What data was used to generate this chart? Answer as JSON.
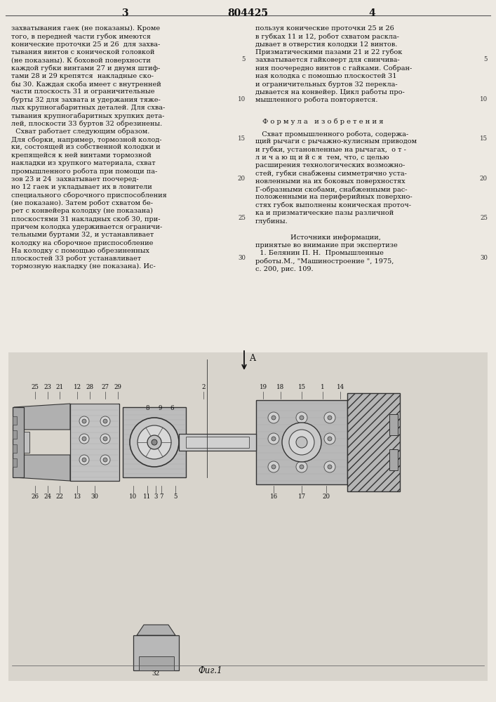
{
  "bg_color": "#ede9e2",
  "text_color": "#111111",
  "page_num_left": "3",
  "page_num_center": "804425",
  "page_num_right": "4",
  "col1_lines": [
    "захватывания гаек (не показаны). Кроме",
    "того, в передней части губок имеются",
    "конические проточки 25 и 26  для захва-",
    "тывания винтов с конической головкой",
    "(не показаны). К боховой поверхности",
    "каждой губки винтами 27 и двумя штиф-",
    "тами 28 и 29 крепятся  накладные ско-",
    "бы 30. Каждая скоба имеет с внутренней",
    "части плоскость 31 и ограничительные",
    "бурты 32 для захвата и удержания тяже-",
    "лых крупногабаритных деталей. Для схва-",
    "тывания крупногабаритных хрупких дета-",
    "лей, плоскости 33 буртов 32 обрезинены.",
    "  Схват работает следующим образом.",
    "Для сборки, например, тормозной колод-",
    "ки, состоящей из собственной колодки и",
    "крепящейся к ней винтами тормозной",
    "накладки из хрупкого материала, схват",
    "промышленного робота при помощи па-",
    "зов 23 и 24  захватывает поочеред-",
    "но 12 гаек и укладывает их в ловители",
    "специального сборочного приспособления",
    "(не показано). Затем робот схватом бе-",
    "рет с конвейера колодку (не показана)",
    "плоскостями 31 накладных скоб 30, при-",
    "причем колодка удерживается ограничи-",
    "тельными буртами 32, и устанавливает",
    "колодку на сборочное приспособление",
    "На колодку с помощью обрезиненных",
    "плоскостей 33 робот устанавливает",
    "тормозную накладку (не показана). Ис-"
  ],
  "col2_lines_part1": [
    "пользуя конические проточки 25 и 26",
    "в губках 11 и 12, робот схватом раскла-",
    "дывает в отверстия колодки 12 винтов.",
    "Призматическими пазами 21 и 22 губок",
    "захватывается гайковерт для свинчива-",
    "ния поочередно винтов с гайками. Собран-",
    "ная колодка с помошью плоскостей 31",
    "и ограничительных буртов 32 перекла-",
    "дывается на конвейер. Цикл работы про-",
    "мышленного робота повторяется."
  ],
  "formula_header": "Ф о р м у л а   и з о б р е т е н и я",
  "formula_lines": [
    "   Схват промышленного робота, содержа-",
    "щий рычаги с рычажно-кулисным приводом",
    "и губки, установленные на рычагах,  о т -",
    "л и ч а ю щ и й с я  тем, что, с целью",
    "расширения технологических возможно-",
    "стей, губки снабжены симметрично уста-",
    "новленными на их боковых поверхностях",
    "Г-образными скобами, снабженными рас-",
    "положенными на периферийных поверхно-",
    "стях губок выполнены коническая проточ-",
    "ка и призматические пазы различной",
    "глубины."
  ],
  "sources_header": "Источники информации,",
  "sources_lines": [
    "принятые во внимание при экспертизе",
    "  1. Белянин П. Н.  Промышленные",
    "роботы.М., \"Машиностроение \", 1975,",
    "с. 200, рис. 109."
  ],
  "diagram_caption": "Фиг.1",
  "line_numbers": [
    5,
    10,
    15,
    20,
    25,
    30
  ]
}
